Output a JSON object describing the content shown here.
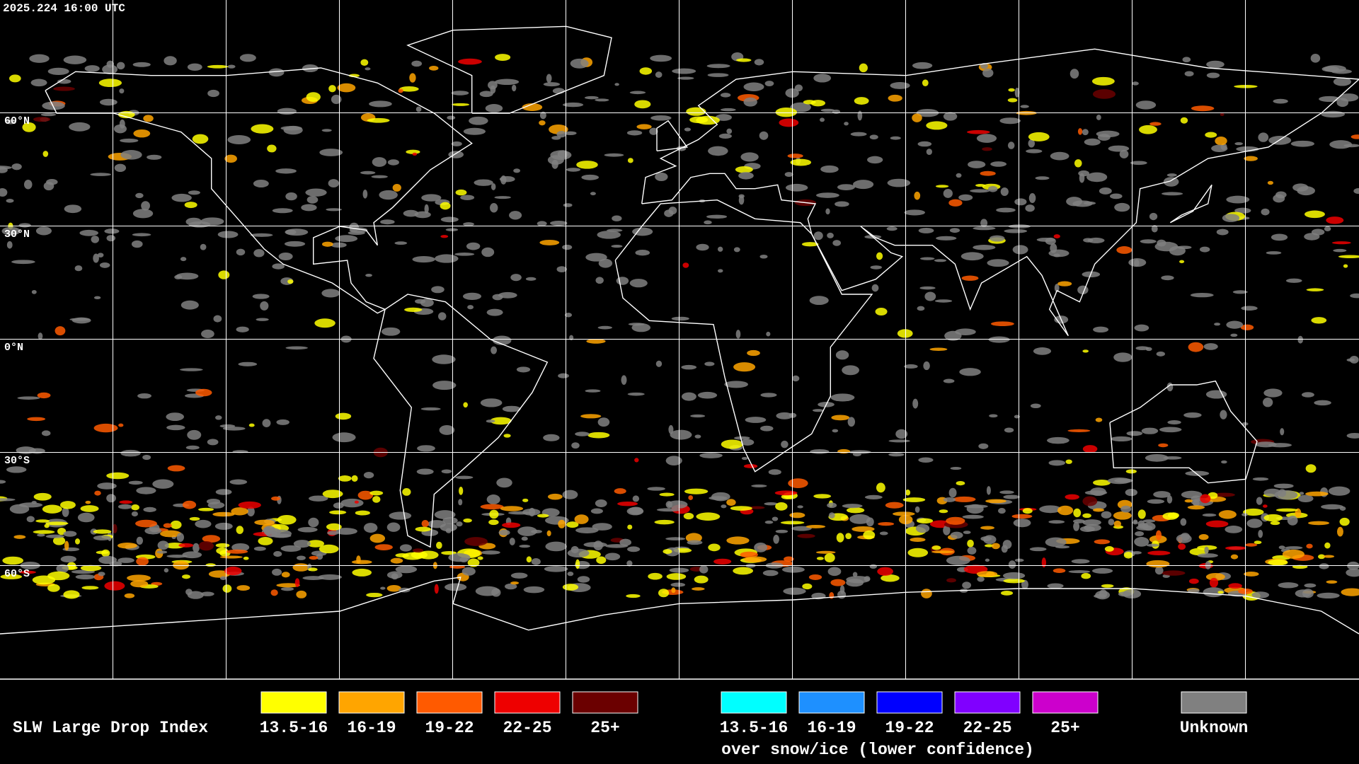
{
  "header": {
    "timestamp": "2025.224 16:00 UTC"
  },
  "map": {
    "lat_labels": [
      "60°N",
      "30°N",
      "0°N",
      "30°S",
      "60°S"
    ]
  },
  "legend": {
    "title": "SLW Large Drop Index",
    "items": [
      {
        "label": "13.5-16",
        "color": "#ffff00"
      },
      {
        "label": "16-19",
        "color": "#ffa500"
      },
      {
        "label": "19-22",
        "color": "#ff5a00"
      },
      {
        "label": "22-25",
        "color": "#ee0000"
      },
      {
        "label": "25+",
        "color": "#6b0000"
      }
    ],
    "snow_items": [
      {
        "label": "13.5-16",
        "color": "#00ffff"
      },
      {
        "label": "16-19",
        "color": "#1e90ff"
      },
      {
        "label": "19-22",
        "color": "#0000ff"
      },
      {
        "label": "22-25",
        "color": "#8000ff"
      },
      {
        "label": "25+",
        "color": "#cc00cc"
      }
    ],
    "snow_caption": "over snow/ice (lower confidence)",
    "unknown": {
      "label": "Unknown",
      "color": "#808080"
    }
  }
}
